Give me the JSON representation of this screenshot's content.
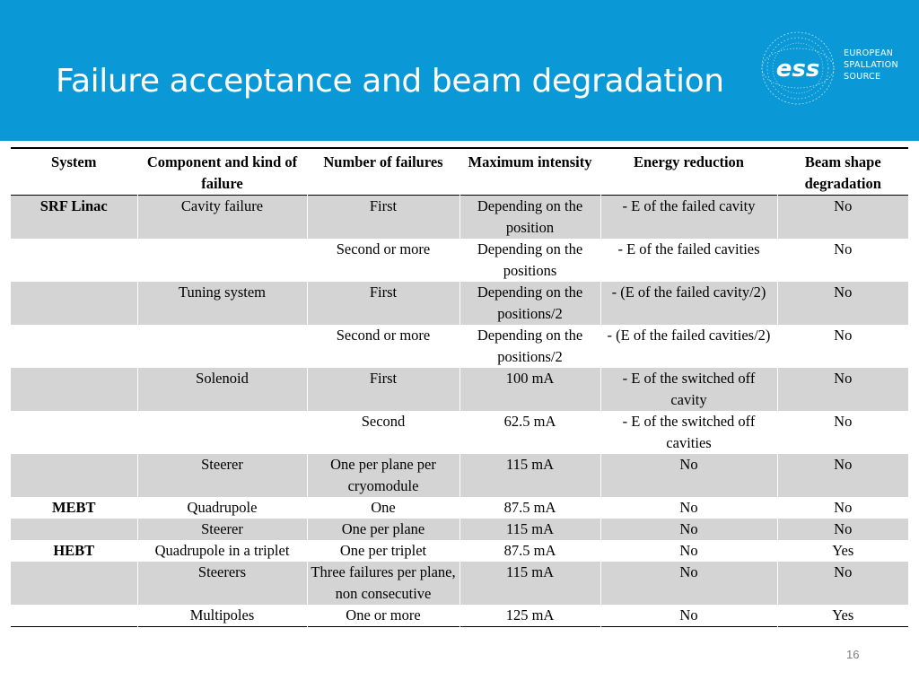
{
  "slide": {
    "title": "Failure acceptance and beam degradation",
    "page_number": "16"
  },
  "logo": {
    "mark": "ess",
    "lines": [
      "EUROPEAN",
      "SPALLATION",
      "SOURCE"
    ],
    "icon": "ess-logo-icon"
  },
  "colors": {
    "header_bg": "#0a99d6",
    "row_shade": "#d4d4d4"
  },
  "table": {
    "headers": [
      "System",
      "Component and kind of failure",
      "Number of failures",
      "Maximum intensity",
      "Energy reduction",
      "Beam shape degradation"
    ],
    "rows": [
      {
        "system": "SRF Linac",
        "component": "Cavity failure",
        "failures": "First",
        "intensity": "Depending on the position",
        "energy": "- E of the failed cavity",
        "beam": "No"
      },
      {
        "system": "",
        "component": "",
        "failures": "Second or more",
        "intensity": "Depending on the positions",
        "energy": "- E of the failed cavities",
        "beam": "No"
      },
      {
        "system": "",
        "component": "Tuning system",
        "failures": "First",
        "intensity": "Depending on the positions/2",
        "energy": "- (E of the failed cavity/2)",
        "beam": "No"
      },
      {
        "system": "",
        "component": "",
        "failures": "Second or more",
        "intensity": "Depending on the positions/2",
        "energy": "- (E of the failed cavities/2)",
        "beam": "No"
      },
      {
        "system": "",
        "component": "Solenoid",
        "failures": "First",
        "intensity": "100 mA",
        "energy": "- E of the switched off cavity",
        "beam": "No"
      },
      {
        "system": "",
        "component": "",
        "failures": "Second",
        "intensity": "62.5 mA",
        "energy": "- E of the switched off cavities",
        "beam": "No"
      },
      {
        "system": "",
        "component": "Steerer",
        "failures": "One per plane per cryomodule",
        "intensity": "115 mA",
        "energy": "No",
        "beam": "No"
      },
      {
        "system": "MEBT",
        "component": "Quadrupole",
        "failures": "One",
        "intensity": "87.5 mA",
        "energy": "No",
        "beam": "No"
      },
      {
        "system": "",
        "component": "Steerer",
        "failures": "One per plane",
        "intensity": "115 mA",
        "energy": "No",
        "beam": "No"
      },
      {
        "system": "HEBT",
        "component": "Quadrupole in a triplet",
        "failures": "One per triplet",
        "intensity": "87.5 mA",
        "energy": "No",
        "beam": "Yes"
      },
      {
        "system": "",
        "component": "Steerers",
        "failures": "Three failures per plane, non consecutive",
        "intensity": "115 mA",
        "energy": "No",
        "beam": "No"
      },
      {
        "system": "",
        "component": "Multipoles",
        "failures": "One or more",
        "intensity": "125 mA",
        "energy": "No",
        "beam": "Yes"
      }
    ]
  }
}
